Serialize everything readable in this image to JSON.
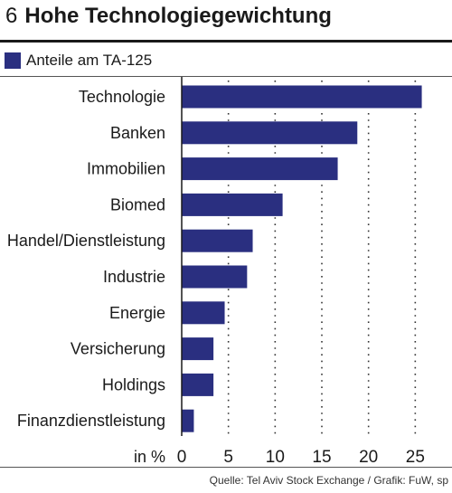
{
  "figure": {
    "number": "6",
    "title": "Hohe Technologiegewichtung",
    "source": "Quelle: Tel Aviv Stock Exchange / Grafik: FuW, sp"
  },
  "colors": {
    "bar": "#2a2f80",
    "text": "#1a1a1a",
    "grid": "#333333"
  },
  "chart_data": {
    "type": "bar",
    "orientation": "horizontal",
    "categories": [
      "Technologie",
      "Banken",
      "Immobilien",
      "Biomed",
      "Handel/Dienstleistung",
      "Industrie",
      "Energie",
      "Versicherung",
      "Holdings",
      "Finanzdienstleistung"
    ],
    "series": [
      {
        "name": "Anteile am TA-125",
        "values": [
          25.7,
          18.8,
          16.7,
          10.8,
          7.6,
          7.0,
          4.6,
          3.4,
          3.4,
          1.3
        ]
      }
    ],
    "xlim": [
      0,
      27
    ],
    "xticks": [
      0,
      5,
      10,
      15,
      20,
      25
    ],
    "xunit_label": "in %",
    "grid": "vertical-dotted",
    "legend": "top-left"
  }
}
